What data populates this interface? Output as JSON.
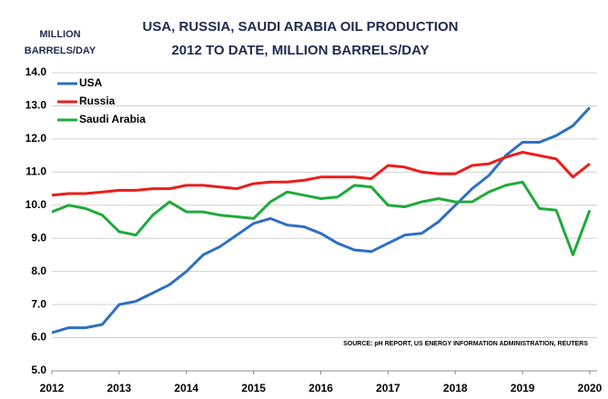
{
  "chart_data": {
    "type": "line",
    "title": [
      "USA, RUSSIA, SAUDI ARABIA OIL PRODUCTION",
      "2012 TO DATE, MILLION BARRELS/DAY"
    ],
    "y_label": [
      "MILLION",
      "BARRELS/DAY"
    ],
    "source": "SOURCE: pH REPORT, US ENERGY INFORMATION ADMINISTRATION, REUTERS",
    "x": [
      2012,
      2012.25,
      2012.5,
      2012.75,
      2013,
      2013.25,
      2013.5,
      2013.75,
      2014,
      2014.25,
      2014.5,
      2014.75,
      2015,
      2015.25,
      2015.5,
      2015.75,
      2016,
      2016.25,
      2016.5,
      2016.75,
      2017,
      2017.25,
      2017.5,
      2017.75,
      2018,
      2018.25,
      2018.5,
      2018.75,
      2019,
      2019.25,
      2019.5,
      2019.75,
      2020
    ],
    "series": [
      {
        "name": "USA",
        "color": "#2e6fc4",
        "values": [
          6.15,
          6.3,
          6.3,
          6.4,
          7.0,
          7.1,
          7.35,
          7.6,
          8.0,
          8.5,
          8.75,
          9.1,
          9.45,
          9.6,
          9.4,
          9.35,
          9.15,
          8.85,
          8.65,
          8.6,
          8.85,
          9.1,
          9.15,
          9.5,
          10.0,
          10.5,
          10.9,
          11.5,
          11.9,
          11.9,
          12.1,
          12.4,
          12.95
        ]
      },
      {
        "name": "Russia",
        "color": "#ee1c1c",
        "values": [
          10.3,
          10.35,
          10.35,
          10.4,
          10.45,
          10.45,
          10.5,
          10.5,
          10.6,
          10.6,
          10.55,
          10.5,
          10.65,
          10.7,
          10.7,
          10.75,
          10.85,
          10.85,
          10.85,
          10.8,
          11.2,
          11.15,
          11.0,
          10.95,
          10.95,
          11.2,
          11.25,
          11.45,
          11.6,
          11.5,
          11.4,
          10.85,
          11.25
        ]
      },
      {
        "name": "Saudi Arabia",
        "color": "#1faa3a",
        "values": [
          9.8,
          10.0,
          9.9,
          9.7,
          9.2,
          9.1,
          9.7,
          10.1,
          9.8,
          9.8,
          9.7,
          9.65,
          9.6,
          10.1,
          10.4,
          10.3,
          10.2,
          10.25,
          10.6,
          10.55,
          10.0,
          9.95,
          10.1,
          10.2,
          10.1,
          10.1,
          10.4,
          10.6,
          10.7,
          9.9,
          9.85,
          8.5,
          9.85
        ]
      }
    ],
    "xlim": [
      2012,
      2020
    ],
    "xticks": [
      2012,
      2013,
      2014,
      2015,
      2016,
      2017,
      2018,
      2019,
      2020
    ],
    "ylim": [
      5,
      14
    ],
    "yticks": [
      {
        "value": 5,
        "label": "5.0"
      },
      {
        "value": 6,
        "label": "6.0"
      },
      {
        "value": 7,
        "label": "7.0"
      },
      {
        "value": 8,
        "label": "8.0"
      },
      {
        "value": 9,
        "label": "9.0"
      },
      {
        "value": 10,
        "label": "10.0"
      },
      {
        "value": 11,
        "label": "11.0"
      },
      {
        "value": 12,
        "label": "12.0"
      },
      {
        "value": 13,
        "label": "13.0"
      },
      {
        "value": 14,
        "label": "14.0"
      }
    ],
    "grid": true,
    "legend": "upper left"
  }
}
